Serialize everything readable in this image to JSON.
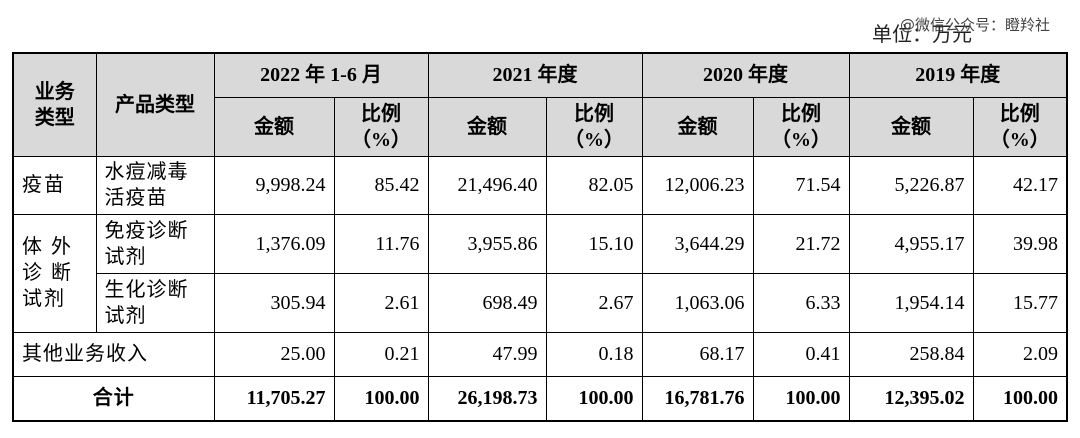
{
  "unit": "单位：万元",
  "watermark": "@微信公众号：瞪羚社",
  "table": {
    "header": {
      "business_type": "业务\n类型",
      "product_type": "产品类型",
      "periods": [
        "2022 年 1-6 月",
        "2021 年度",
        "2020 年度",
        "2019 年度"
      ],
      "amount": "金额",
      "ratio": "比例\n（%）"
    },
    "rows": [
      {
        "type": "疫苗",
        "product": "水痘减毒\n活疫苗",
        "values": [
          "9,998.24",
          "85.42",
          "21,496.40",
          "82.05",
          "12,006.23",
          "71.54",
          "5,226.87",
          "42.17"
        ]
      },
      {
        "type": "体 外\n诊 断\n试剂",
        "product": "免疫诊断\n试剂",
        "values": [
          "1,376.09",
          "11.76",
          "3,955.86",
          "15.10",
          "3,644.29",
          "21.72",
          "4,955.17",
          "39.98"
        ]
      },
      {
        "product": "生化诊断\n试剂",
        "values": [
          "305.94",
          "2.61",
          "698.49",
          "2.67",
          "1,063.06",
          "6.33",
          "1,954.14",
          "15.77"
        ]
      },
      {
        "label": "其他业务收入",
        "values": [
          "25.00",
          "0.21",
          "47.99",
          "0.18",
          "68.17",
          "0.41",
          "258.84",
          "2.09"
        ]
      },
      {
        "label": "合计",
        "values": [
          "11,705.27",
          "100.00",
          "26,198.73",
          "100.00",
          "16,781.76",
          "100.00",
          "12,395.02",
          "100.00"
        ]
      }
    ]
  }
}
